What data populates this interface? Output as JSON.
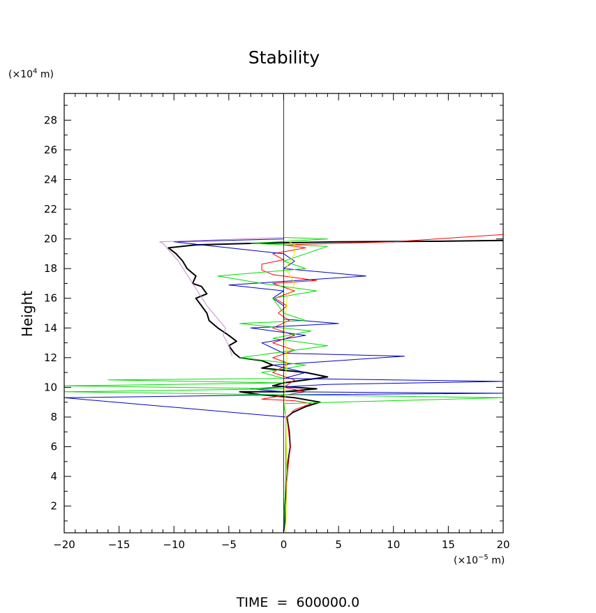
{
  "chart_data": {
    "type": "line",
    "title": "Stability",
    "xlabel": "",
    "ylabel": "Height",
    "x_unit_prefix": "(×10",
    "x_unit_exp": "−5",
    "x_unit_suffix": " m)",
    "y_unit_prefix": "(×10",
    "y_unit_exp": "4",
    "y_unit_suffix": " m)",
    "xlim": [
      -20,
      20
    ],
    "ylim": [
      0.2,
      29.8
    ],
    "xticks": [
      -20,
      -15,
      -10,
      -5,
      0,
      5,
      10,
      15,
      20
    ],
    "xtick_labels": [
      "−20",
      "−15",
      "−10",
      "−5",
      "0",
      "5",
      "10",
      "15",
      "20"
    ],
    "yticks": [
      2,
      4,
      6,
      8,
      10,
      12,
      14,
      16,
      18,
      20,
      22,
      24,
      26,
      28
    ],
    "ytick_labels": [
      "2",
      "4",
      "6",
      "8",
      "10",
      "12",
      "14",
      "16",
      "18",
      "20",
      "22",
      "24",
      "26",
      "28"
    ],
    "grid": false,
    "legend": "none",
    "footer": "TIME  =  600000.0",
    "series": [
      {
        "color": "#000000",
        "width": 2,
        "points": [
          [
            0,
            0.3
          ],
          [
            0.1,
            1
          ],
          [
            0.1,
            2
          ],
          [
            0.2,
            3
          ],
          [
            0.3,
            4
          ],
          [
            0.4,
            5
          ],
          [
            0.6,
            6
          ],
          [
            0.5,
            7
          ],
          [
            0.3,
            8
          ],
          [
            0.8,
            8.3
          ],
          [
            2,
            8.7
          ],
          [
            3.3,
            9.0
          ],
          [
            1,
            9.3
          ],
          [
            -2,
            9.5
          ],
          [
            -4,
            9.7
          ],
          [
            0,
            9.7
          ],
          [
            3,
            9.9
          ],
          [
            1,
            10.0
          ],
          [
            -1,
            10.1
          ],
          [
            0,
            10.3
          ],
          [
            2,
            10.5
          ],
          [
            4,
            10.7
          ],
          [
            2,
            11.0
          ],
          [
            -2,
            11.3
          ],
          [
            -1,
            11.5
          ],
          [
            -2,
            11.8
          ],
          [
            -4,
            12.0
          ],
          [
            -4.5,
            12.3
          ],
          [
            -5,
            12.8
          ],
          [
            -4.3,
            13.1
          ],
          [
            -5,
            13.5
          ],
          [
            -6,
            14.0
          ],
          [
            -6.8,
            14.5
          ],
          [
            -7,
            15.0
          ],
          [
            -7.5,
            15.5
          ],
          [
            -8,
            16.0
          ],
          [
            -7,
            16.3
          ],
          [
            -7.5,
            16.8
          ],
          [
            -8.3,
            17.0
          ],
          [
            -8,
            17.5
          ],
          [
            -8.8,
            18.0
          ],
          [
            -9.2,
            18.5
          ],
          [
            -9.8,
            19.0
          ],
          [
            -10.5,
            19.4
          ],
          [
            -8,
            19.6
          ],
          [
            -3,
            19.7
          ],
          [
            5,
            19.8
          ],
          [
            15,
            19.85
          ],
          [
            20,
            19.9
          ]
        ]
      },
      {
        "color": "#ff0000",
        "width": 1,
        "points": [
          [
            0,
            0.3
          ],
          [
            0.1,
            2
          ],
          [
            0.3,
            4
          ],
          [
            0.6,
            6
          ],
          [
            0.3,
            8
          ],
          [
            1,
            8.5
          ],
          [
            2.5,
            8.9
          ],
          [
            1,
            9.1
          ],
          [
            -2,
            9.2
          ],
          [
            -0.5,
            9.4
          ],
          [
            2,
            9.7
          ],
          [
            0,
            10
          ],
          [
            1,
            10.5
          ],
          [
            -1,
            11
          ],
          [
            0.5,
            11.6
          ],
          [
            -1,
            12
          ],
          [
            1,
            12.5
          ],
          [
            -1,
            13
          ],
          [
            1,
            13.5
          ],
          [
            -1,
            14
          ],
          [
            0.5,
            14.5
          ],
          [
            -0.5,
            15
          ],
          [
            0.3,
            15.5
          ],
          [
            -0.8,
            16
          ],
          [
            1,
            16.5
          ],
          [
            -1,
            17
          ],
          [
            3,
            17.2
          ],
          [
            -1,
            17.6
          ],
          [
            -2,
            17.9
          ],
          [
            -2,
            18.3
          ],
          [
            0,
            18.6
          ],
          [
            -1,
            19
          ],
          [
            2,
            19.4
          ],
          [
            0,
            19.6
          ],
          [
            10,
            19.8
          ],
          [
            20,
            20.3
          ]
        ]
      },
      {
        "color": "#0000c8",
        "width": 1,
        "points": [
          [
            0,
            0.2
          ],
          [
            0.2,
            3
          ],
          [
            0.2,
            8
          ],
          [
            -20,
            9.3
          ],
          [
            0,
            9.5
          ],
          [
            20,
            9.6
          ],
          [
            0,
            9.7
          ],
          [
            -3,
            9.9
          ],
          [
            4,
            10.2
          ],
          [
            20,
            10.4
          ],
          [
            0,
            10.6
          ],
          [
            2,
            11
          ],
          [
            -1,
            11.5
          ],
          [
            11,
            12.1
          ],
          [
            0,
            12.3
          ],
          [
            -2,
            13
          ],
          [
            2,
            13.5
          ],
          [
            -3,
            14
          ],
          [
            5,
            14.3
          ],
          [
            0,
            14.6
          ],
          [
            0,
            15.5
          ],
          [
            -1,
            16
          ],
          [
            0,
            16.5
          ],
          [
            -5,
            16.9
          ],
          [
            7.5,
            17.5
          ],
          [
            0,
            18
          ],
          [
            1,
            18.5
          ],
          [
            0,
            19
          ],
          [
            -10,
            19.8
          ],
          [
            0,
            20
          ]
        ]
      },
      {
        "color": "#00dd00",
        "width": 1,
        "points": [
          [
            0,
            0.3
          ],
          [
            0.2,
            4
          ],
          [
            0.2,
            8
          ],
          [
            0,
            8.9
          ],
          [
            20,
            9.3
          ],
          [
            0,
            9.5
          ],
          [
            -20,
            9.7
          ],
          [
            0,
            9.9
          ],
          [
            -20,
            10.1
          ],
          [
            0,
            10.3
          ],
          [
            -16,
            10.5
          ],
          [
            0,
            10.6
          ],
          [
            -2,
            11
          ],
          [
            2,
            11.5
          ],
          [
            -4,
            12
          ],
          [
            4,
            12.8
          ],
          [
            -1,
            13.3
          ],
          [
            2.5,
            13.8
          ],
          [
            -4,
            14.3
          ],
          [
            2,
            14.5
          ],
          [
            0,
            15
          ],
          [
            -1,
            16
          ],
          [
            3,
            16.5
          ],
          [
            -2,
            17
          ],
          [
            -6,
            17.5
          ],
          [
            2,
            18
          ],
          [
            0,
            18.5
          ],
          [
            4,
            19.5
          ],
          [
            -3,
            19.7
          ],
          [
            4,
            20
          ],
          [
            0,
            20.1
          ]
        ]
      },
      {
        "color": "#e8e800",
        "width": 1,
        "points": [
          [
            0.2,
            0.2
          ],
          [
            0.3,
            4
          ],
          [
            0.2,
            8
          ],
          [
            0.1,
            10
          ],
          [
            0.3,
            12
          ],
          [
            0.1,
            14
          ],
          [
            0.3,
            16
          ],
          [
            1,
            17
          ],
          [
            0.2,
            18
          ],
          [
            1,
            19
          ],
          [
            1,
            19.6
          ],
          [
            0.5,
            19.8
          ]
        ]
      },
      {
        "color": "#cc88cc",
        "width": 1,
        "points": [
          [
            -4.7,
            12.1
          ],
          [
            -5,
            12.8
          ],
          [
            -5.5,
            13.5
          ],
          [
            -5.3,
            14
          ],
          [
            -7,
            15.5
          ],
          [
            -8.3,
            17
          ],
          [
            -9.6,
            18.5
          ],
          [
            -11,
            19.7
          ],
          [
            -11.3,
            19.8
          ],
          [
            0,
            20.1
          ]
        ]
      },
      {
        "color": "#000000",
        "width": 0.8,
        "points": [
          [
            0,
            0.2
          ],
          [
            0,
            29.8
          ]
        ]
      }
    ]
  }
}
